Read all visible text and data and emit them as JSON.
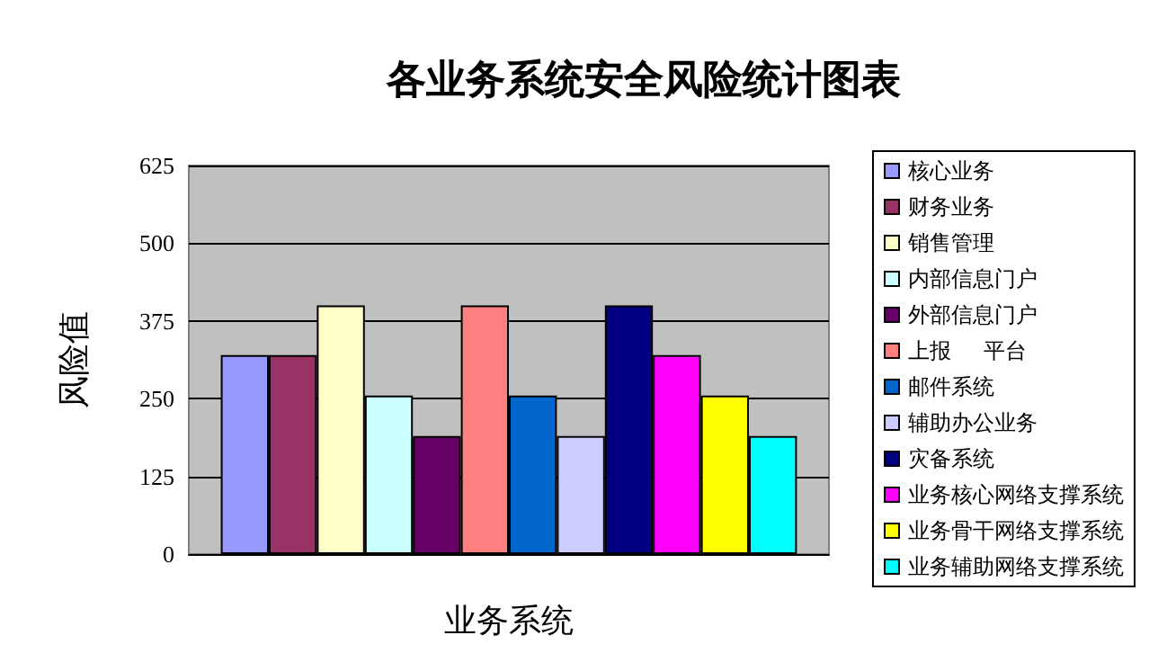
{
  "chart_data": {
    "type": "bar",
    "title": "各业务系统安全风险统计图表",
    "xlabel": "业务系统",
    "ylabel": "风险值",
    "categories": [
      null
    ],
    "series": [
      {
        "name": "核心业务",
        "color": "#9999ff",
        "values": [
          320
        ]
      },
      {
        "name": "财务业务",
        "color": "#993366",
        "values": [
          320
        ]
      },
      {
        "name": "销售管理",
        "color": "#ffffcc",
        "values": [
          400
        ]
      },
      {
        "name": "内部信息门户",
        "color": "#ccffff",
        "values": [
          255
        ]
      },
      {
        "name": "外部信息门户",
        "color": "#660066",
        "values": [
          190
        ]
      },
      {
        "name": "上报      平台",
        "color": "#ff8080",
        "values": [
          400
        ]
      },
      {
        "name": "邮件系统",
        "color": "#0066cc",
        "values": [
          255
        ]
      },
      {
        "name": "辅助办公业务",
        "color": "#ccccff",
        "values": [
          190
        ]
      },
      {
        "name": "灾备系统",
        "color": "#000080",
        "values": [
          400
        ]
      },
      {
        "name": "业务核心网络支撑系统",
        "color": "#ff00ff",
        "values": [
          320
        ]
      },
      {
        "name": "业务骨干网络支撑系统",
        "color": "#ffff00",
        "values": [
          255
        ]
      },
      {
        "name": "业务辅助网络支撑系统",
        "color": "#00ffff",
        "values": [
          190
        ]
      }
    ],
    "ylim": [
      0,
      625
    ],
    "yticks": [
      0,
      125,
      250,
      375,
      500,
      625
    ],
    "grid": "y",
    "legend": "right"
  }
}
